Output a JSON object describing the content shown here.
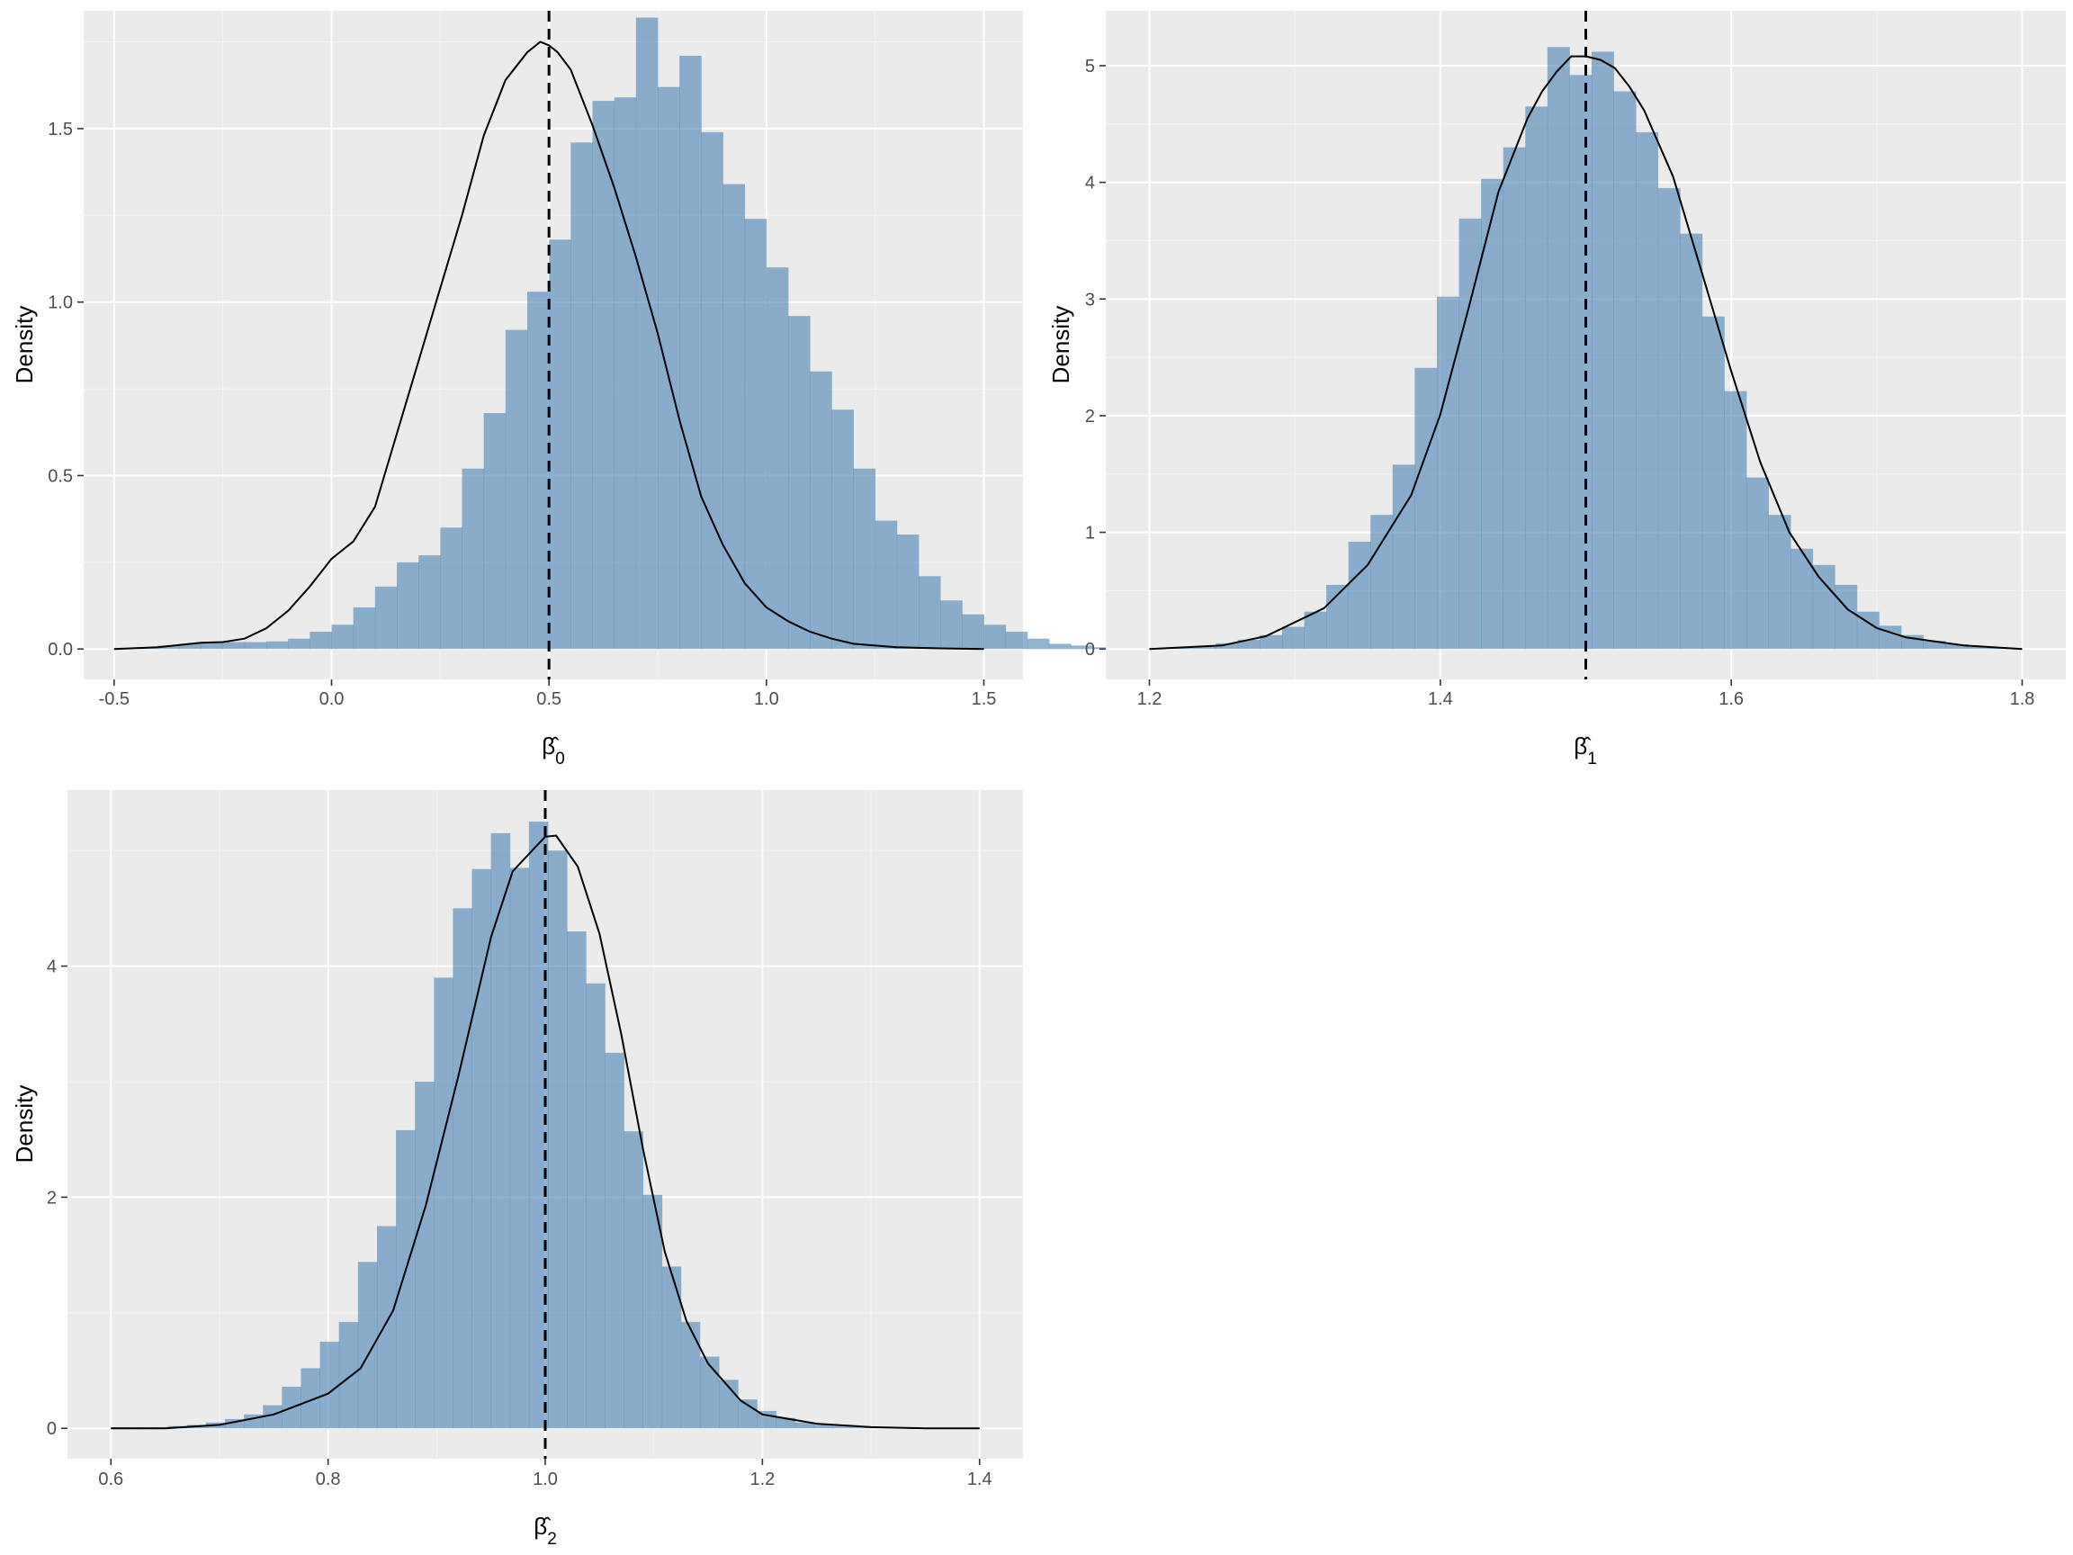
{
  "chart_data": [
    {
      "type": "bar",
      "xlabel": "β̂",
      "xlabel_subscript": "0",
      "ylabel": "Density",
      "xlim": [
        -0.57,
        1.59
      ],
      "ylim": [
        -0.0876,
        1.8396
      ],
      "x_ticks": [
        -0.5,
        0.0,
        0.5,
        1.0,
        1.5
      ],
      "x_tick_labels": [
        "-0.5",
        "0.0",
        "0.5",
        "1.0",
        "1.5"
      ],
      "y_ticks": [
        0.0,
        0.5,
        1.0,
        1.5
      ],
      "y_tick_labels": [
        "0.0",
        "0.5",
        "1.0",
        "1.5"
      ],
      "bin_width": 0.05,
      "bins_start": -0.5,
      "values": [
        0.0,
        0.005,
        0.01,
        0.015,
        0.018,
        0.02,
        0.02,
        0.022,
        0.03,
        0.05,
        0.07,
        0.12,
        0.18,
        0.25,
        0.27,
        0.35,
        0.52,
        0.68,
        0.92,
        1.03,
        1.18,
        1.46,
        1.58,
        1.59,
        1.82,
        1.62,
        1.71,
        1.49,
        1.34,
        1.24,
        1.1,
        0.96,
        0.8,
        0.69,
        0.52,
        0.37,
        0.33,
        0.21,
        0.14,
        0.1,
        0.07,
        0.05,
        0.03,
        0.015,
        0.01,
        0.005,
        0.003,
        0.002,
        0.001,
        0.0
      ],
      "density_x": [
        -0.5,
        -0.4,
        -0.3,
        -0.25,
        -0.2,
        -0.15,
        -0.1,
        -0.05,
        0.0,
        0.05,
        0.1,
        0.15,
        0.2,
        0.25,
        0.3,
        0.35,
        0.4,
        0.45,
        0.48,
        0.5,
        0.52,
        0.55,
        0.6,
        0.65,
        0.7,
        0.75,
        0.8,
        0.85,
        0.9,
        0.95,
        1.0,
        1.05,
        1.1,
        1.15,
        1.2,
        1.25,
        1.3,
        1.4,
        1.5
      ],
      "density_y": [
        0.0,
        0.005,
        0.018,
        0.02,
        0.03,
        0.06,
        0.11,
        0.18,
        0.26,
        0.31,
        0.41,
        0.62,
        0.83,
        1.04,
        1.25,
        1.48,
        1.64,
        1.72,
        1.75,
        1.74,
        1.72,
        1.67,
        1.51,
        1.33,
        1.13,
        0.91,
        0.66,
        0.44,
        0.3,
        0.19,
        0.12,
        0.08,
        0.05,
        0.03,
        0.015,
        0.01,
        0.005,
        0.002,
        0.0
      ],
      "reference_line_x": 0.5
    },
    {
      "type": "bar",
      "xlabel": "β̂",
      "xlabel_subscript": "1",
      "ylabel": "Density",
      "xlim": [
        1.17,
        1.83
      ],
      "ylim": [
        -0.2605,
        5.4705
      ],
      "x_ticks": [
        1.2,
        1.4,
        1.6,
        1.8
      ],
      "x_tick_labels": [
        "1.2",
        "1.4",
        "1.6",
        "1.8"
      ],
      "y_ticks": [
        0,
        1,
        2,
        3,
        4,
        5
      ],
      "y_tick_labels": [
        "0",
        "1",
        "2",
        "3",
        "4",
        "5"
      ],
      "bin_width": 0.0152,
      "bins_start": 1.2,
      "values": [
        0.0,
        0.01,
        0.02,
        0.05,
        0.08,
        0.12,
        0.19,
        0.32,
        0.55,
        0.92,
        1.15,
        1.58,
        2.41,
        3.02,
        3.69,
        4.03,
        4.3,
        4.65,
        5.16,
        4.92,
        5.12,
        4.78,
        4.43,
        3.95,
        3.56,
        2.85,
        2.21,
        1.47,
        1.15,
        0.86,
        0.72,
        0.55,
        0.32,
        0.2,
        0.12,
        0.07,
        0.04,
        0.02,
        0.01,
        0.0
      ],
      "density_x": [
        1.2,
        1.25,
        1.28,
        1.32,
        1.35,
        1.38,
        1.4,
        1.42,
        1.44,
        1.46,
        1.47,
        1.48,
        1.49,
        1.5,
        1.51,
        1.52,
        1.53,
        1.54,
        1.56,
        1.58,
        1.6,
        1.62,
        1.64,
        1.66,
        1.68,
        1.7,
        1.72,
        1.76,
        1.8
      ],
      "density_y": [
        0.0,
        0.03,
        0.11,
        0.35,
        0.72,
        1.32,
        2.01,
        2.95,
        3.92,
        4.55,
        4.78,
        4.95,
        5.08,
        5.08,
        5.05,
        4.98,
        4.82,
        4.62,
        4.05,
        3.22,
        2.38,
        1.6,
        1.0,
        0.62,
        0.34,
        0.18,
        0.1,
        0.03,
        0.0
      ],
      "reference_line_x": 1.5
    },
    {
      "type": "bar",
      "xlabel": "β̂",
      "xlabel_subscript": "2",
      "ylabel": "Density",
      "xlim": [
        0.56,
        1.44
      ],
      "ylim": [
        -0.263,
        5.523
      ],
      "x_ticks": [
        0.6,
        0.8,
        1.0,
        1.2,
        1.4
      ],
      "x_tick_labels": [
        "0.6",
        "0.8",
        "1.0",
        "1.2",
        "1.4"
      ],
      "y_ticks": [
        0,
        2,
        4
      ],
      "y_tick_labels": [
        "0",
        "2",
        "4"
      ],
      "bin_width": 0.0175,
      "bins_start": 0.6,
      "values": [
        0.01,
        0.01,
        0.01,
        0.02,
        0.03,
        0.05,
        0.08,
        0.12,
        0.2,
        0.36,
        0.52,
        0.75,
        0.92,
        1.44,
        1.75,
        2.58,
        3.0,
        3.9,
        4.5,
        4.84,
        5.15,
        4.85,
        5.25,
        5.0,
        4.3,
        3.85,
        3.25,
        2.57,
        2.02,
        1.4,
        0.92,
        0.62,
        0.42,
        0.25,
        0.15,
        0.09,
        0.05,
        0.03,
        0.02,
        0.01,
        0.01,
        0.0,
        0.0,
        0.0,
        0.0,
        0.0
      ],
      "density_x": [
        0.6,
        0.65,
        0.7,
        0.75,
        0.8,
        0.83,
        0.86,
        0.89,
        0.92,
        0.95,
        0.97,
        0.99,
        1.0,
        1.01,
        1.03,
        1.05,
        1.07,
        1.09,
        1.11,
        1.13,
        1.15,
        1.18,
        1.2,
        1.25,
        1.3,
        1.35,
        1.4
      ],
      "density_y": [
        0.0,
        0.0,
        0.03,
        0.12,
        0.3,
        0.52,
        1.02,
        1.93,
        3.05,
        4.25,
        4.82,
        5.02,
        5.12,
        5.13,
        4.86,
        4.28,
        3.41,
        2.42,
        1.53,
        0.93,
        0.56,
        0.24,
        0.12,
        0.04,
        0.01,
        0.0,
        0.0
      ],
      "reference_line_x": 1.0
    }
  ]
}
